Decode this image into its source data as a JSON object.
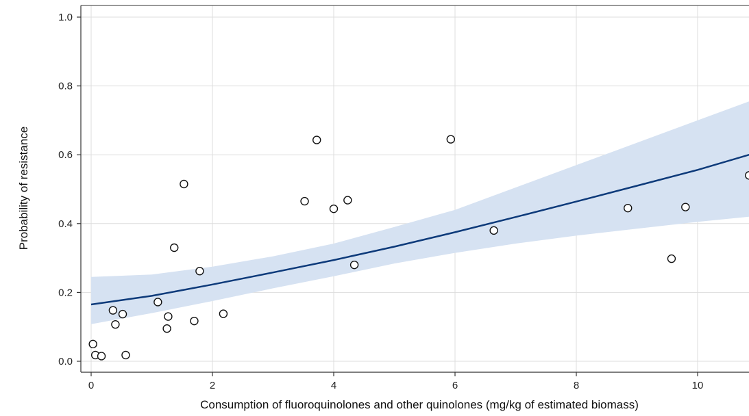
{
  "chart_data": {
    "type": "scatter",
    "title": "",
    "xlabel": "Consumption of fluoroquinolones and other quinolones (mg/kg of estimated biomass)",
    "ylabel": "Probability of resistance",
    "xlim": [
      0,
      10.85
    ],
    "ylim": [
      0,
      1.0
    ],
    "x_ticks": [
      0,
      2,
      4,
      6,
      8,
      10
    ],
    "y_ticks": [
      0.0,
      0.2,
      0.4,
      0.6,
      0.8,
      1.0
    ],
    "x_tick_labels": [
      "0",
      "2",
      "4",
      "6",
      "8",
      "10"
    ],
    "y_tick_labels": [
      "0.0",
      "0.2",
      "0.4",
      "0.6",
      "0.8",
      "1.0"
    ],
    "grid": true,
    "points": [
      {
        "x": 0.03,
        "y": 0.05
      },
      {
        "x": 0.07,
        "y": 0.018
      },
      {
        "x": 0.17,
        "y": 0.015
      },
      {
        "x": 0.36,
        "y": 0.148
      },
      {
        "x": 0.4,
        "y": 0.107
      },
      {
        "x": 0.52,
        "y": 0.137
      },
      {
        "x": 0.57,
        "y": 0.018
      },
      {
        "x": 1.1,
        "y": 0.172
      },
      {
        "x": 1.25,
        "y": 0.095
      },
      {
        "x": 1.27,
        "y": 0.13
      },
      {
        "x": 1.37,
        "y": 0.33
      },
      {
        "x": 1.53,
        "y": 0.515
      },
      {
        "x": 1.7,
        "y": 0.117
      },
      {
        "x": 1.79,
        "y": 0.262
      },
      {
        "x": 2.18,
        "y": 0.138
      },
      {
        "x": 3.52,
        "y": 0.465
      },
      {
        "x": 3.72,
        "y": 0.643
      },
      {
        "x": 4.0,
        "y": 0.443
      },
      {
        "x": 4.23,
        "y": 0.468
      },
      {
        "x": 4.34,
        "y": 0.28
      },
      {
        "x": 5.93,
        "y": 0.645
      },
      {
        "x": 6.64,
        "y": 0.38
      },
      {
        "x": 8.85,
        "y": 0.445
      },
      {
        "x": 9.57,
        "y": 0.298
      },
      {
        "x": 9.8,
        "y": 0.448
      },
      {
        "x": 10.85,
        "y": 0.54
      }
    ],
    "fit_line": {
      "x": [
        0,
        1,
        2,
        3,
        4,
        5,
        6,
        7,
        8,
        9,
        10,
        10.85
      ],
      "y": [
        0.165,
        0.19,
        0.223,
        0.258,
        0.294,
        0.333,
        0.375,
        0.419,
        0.464,
        0.51,
        0.556,
        0.6
      ]
    },
    "confidence_band": {
      "x": [
        0,
        1,
        2,
        3,
        4,
        5,
        6,
        7,
        8,
        9,
        10,
        10.85
      ],
      "lower": [
        0.108,
        0.14,
        0.175,
        0.212,
        0.247,
        0.284,
        0.315,
        0.342,
        0.365,
        0.385,
        0.405,
        0.42
      ],
      "upper": [
        0.245,
        0.252,
        0.275,
        0.305,
        0.342,
        0.39,
        0.44,
        0.505,
        0.57,
        0.635,
        0.7,
        0.755
      ]
    },
    "colors": {
      "line": "#0d3a7a",
      "band": "#d6e2f2",
      "grid": "#dddddd",
      "marker_edge": "#111111",
      "axis": "#333333"
    }
  }
}
